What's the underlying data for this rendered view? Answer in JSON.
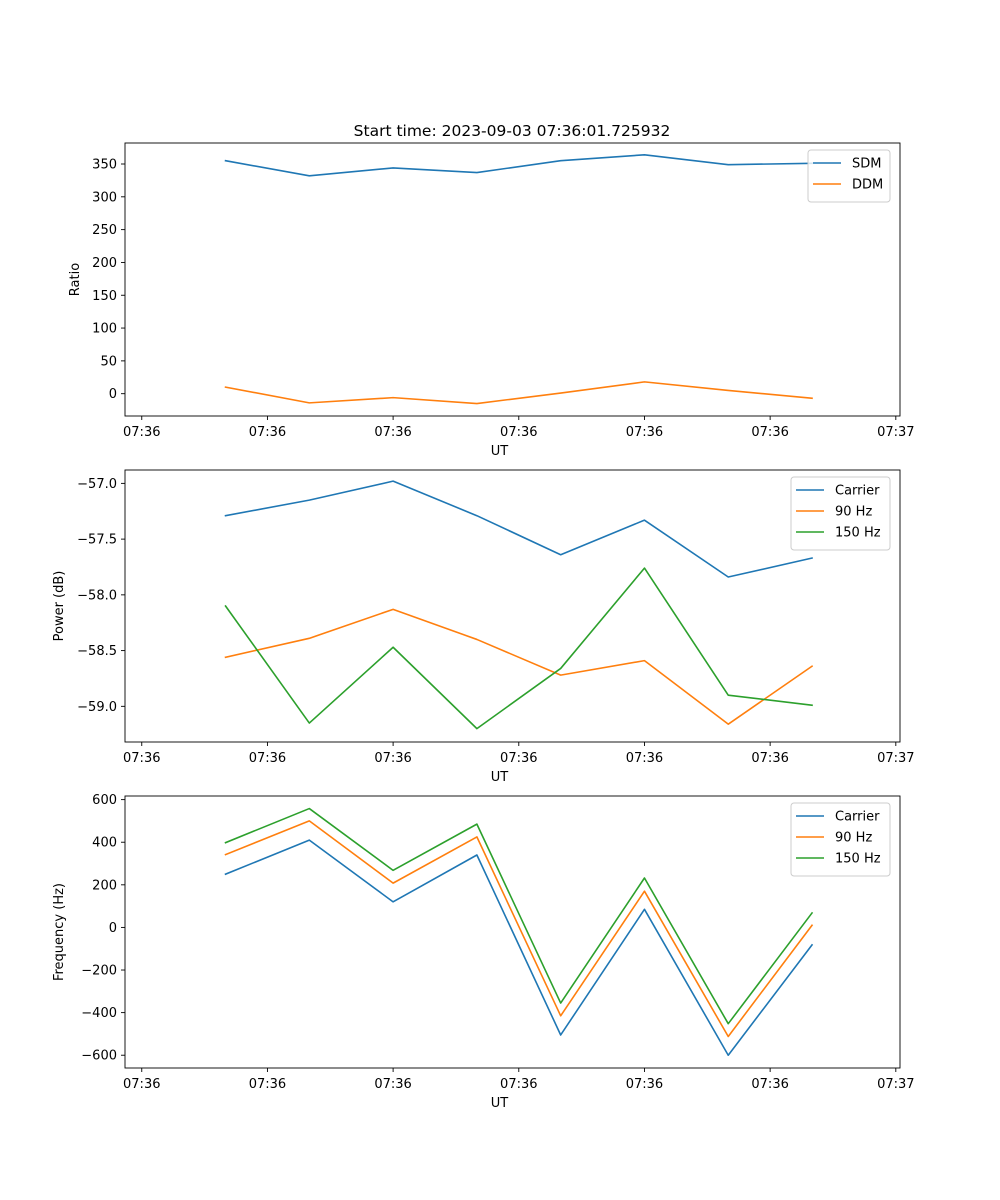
{
  "chart_data": [
    {
      "type": "line",
      "title": "Start time: 2023-09-03 07:36:01.725932",
      "xlabel": "UT",
      "ylabel": "Ratio",
      "x": [
        0.78,
        1.18,
        1.58,
        1.98,
        2.38,
        2.78,
        3.18,
        3.58
      ],
      "xlim": [
        0.3,
        4.0
      ],
      "x_ticks": [
        0.38,
        0.98,
        1.58,
        2.18,
        2.78,
        3.38,
        3.98
      ],
      "x_tick_labels": [
        "07:36",
        "07:36",
        "07:36",
        "07:36",
        "07:36",
        "07:36",
        "07:37"
      ],
      "ylim": [
        -34,
        382
      ],
      "y_ticks": [
        0,
        50,
        100,
        150,
        200,
        250,
        300,
        350
      ],
      "y_tick_labels": [
        "0",
        "50",
        "100",
        "150",
        "200",
        "250",
        "300",
        "350"
      ],
      "legend_location": "top-right",
      "series": [
        {
          "name": "SDM",
          "color": "#1f77b4",
          "values": [
            355,
            332,
            344,
            337,
            355,
            364,
            349,
            351
          ]
        },
        {
          "name": "DDM",
          "color": "#ff7f0e",
          "values": [
            10,
            -14,
            -6,
            -15,
            1,
            18,
            5,
            -7
          ]
        }
      ]
    },
    {
      "type": "line",
      "title": "",
      "xlabel": "UT",
      "ylabel": "Power (dB)",
      "x": [
        0.78,
        1.18,
        1.58,
        1.98,
        2.38,
        2.78,
        3.18,
        3.58
      ],
      "xlim": [
        0.3,
        4.0
      ],
      "x_ticks": [
        0.38,
        0.98,
        1.58,
        2.18,
        2.78,
        3.38,
        3.98
      ],
      "x_tick_labels": [
        "07:36",
        "07:36",
        "07:36",
        "07:36",
        "07:36",
        "07:36",
        "07:37"
      ],
      "ylim": [
        -59.32,
        -56.88
      ],
      "y_ticks": [
        -59.0,
        -58.5,
        -58.0,
        -57.5,
        -57.0
      ],
      "y_tick_labels": [
        "−59.0",
        "−58.5",
        "−58.0",
        "−57.5",
        "−57.0"
      ],
      "legend_location": "top-right",
      "series": [
        {
          "name": "Carrier",
          "color": "#1f77b4",
          "values": [
            -57.29,
            -57.15,
            -56.98,
            -57.29,
            -57.64,
            -57.33,
            -57.84,
            -57.67
          ]
        },
        {
          "name": "90 Hz",
          "color": "#ff7f0e",
          "values": [
            -58.56,
            -58.39,
            -58.13,
            -58.4,
            -58.72,
            -58.59,
            -59.16,
            -58.64
          ]
        },
        {
          "name": "150 Hz",
          "color": "#2ca02c",
          "values": [
            -58.1,
            -59.15,
            -58.47,
            -59.2,
            -58.66,
            -57.76,
            -58.9,
            -58.99
          ]
        }
      ]
    },
    {
      "type": "line",
      "title": "",
      "xlabel": "UT",
      "ylabel": "Frequency (Hz)",
      "x": [
        0.78,
        1.18,
        1.58,
        1.98,
        2.38,
        2.78,
        3.18,
        3.58
      ],
      "xlim": [
        0.3,
        4.0
      ],
      "x_ticks": [
        0.38,
        0.98,
        1.58,
        2.18,
        2.78,
        3.38,
        3.98
      ],
      "x_tick_labels": [
        "07:36",
        "07:36",
        "07:36",
        "07:36",
        "07:36",
        "07:36",
        "07:37"
      ],
      "ylim": [
        -660,
        617
      ],
      "y_ticks": [
        -600,
        -400,
        -200,
        0,
        200,
        400,
        600
      ],
      "y_tick_labels": [
        "−600",
        "−400",
        "−200",
        "0",
        "200",
        "400",
        "600"
      ],
      "legend_location": "top-right",
      "series": [
        {
          "name": "Carrier",
          "color": "#1f77b4",
          "values": [
            250,
            410,
            120,
            340,
            -505,
            85,
            -600,
            -82
          ]
        },
        {
          "name": "90 Hz",
          "color": "#ff7f0e",
          "values": [
            342,
            500,
            208,
            425,
            -415,
            170,
            -512,
            10
          ]
        },
        {
          "name": "150 Hz",
          "color": "#2ca02c",
          "values": [
            398,
            558,
            268,
            485,
            -355,
            232,
            -452,
            68
          ]
        }
      ]
    }
  ]
}
